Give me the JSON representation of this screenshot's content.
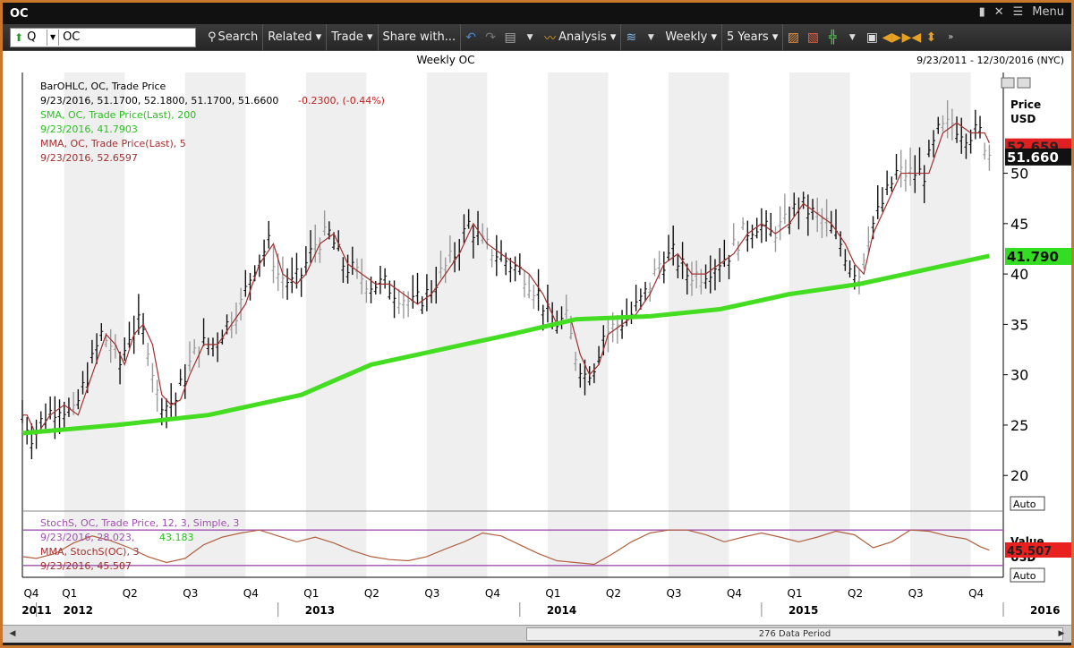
{
  "window": {
    "title": "OC",
    "menu_label": "Menu"
  },
  "toolbar": {
    "symbol_prefix": "Q",
    "symbol_value": "OC",
    "search": "Search",
    "related": "Related",
    "trade": "Trade",
    "share": "Share with...",
    "analysis": "Analysis",
    "interval": "Weekly",
    "range": "5 Years"
  },
  "chart_header": {
    "title": "Weekly OC",
    "date_range": "9/23/2011 - 12/30/2016 (NYC)"
  },
  "legend": {
    "l1": "BarOHLC, OC, Trade Price",
    "l2a": "9/23/2016, 51.1700, 52.1800, 51.1700, 51.6600",
    "l2b": "-0.2300, (-0.44%)",
    "l3": "SMA, OC, Trade Price(Last), 200",
    "l4": "9/23/2016, 41.7903",
    "l5": "MMA, OC, Trade Price(Last), 5",
    "l6": "9/23/2016, 52.6597"
  },
  "lower_legend": {
    "l1": "StochS, OC, Trade Price, 12, 3, Simple, 3",
    "l2a": "9/23/2016, 28.023,",
    "l2b": "43.183",
    "l3": "MMA, StochS(OC), 3",
    "l4": "9/23/2016, 45.507"
  },
  "price_axis": {
    "label1": "Price",
    "label2": "USD",
    "auto": "Auto"
  },
  "value_axis": {
    "label1": "Value",
    "label2": "USD",
    "auto": "Auto"
  },
  "badges": {
    "mma": "52.659",
    "last": "51.660",
    "sma": "41.790",
    "stoch": "45.507"
  },
  "scrollbar": {
    "label": "276 Data Period"
  },
  "colors": {
    "sma": "#44dd22",
    "mma": "#a03030",
    "bars": "#111111",
    "stoch": "#b06040",
    "band": "#a050b0"
  },
  "chart_data": {
    "type": "line",
    "title": "Weekly OC",
    "ylim": [
      17,
      60
    ],
    "yticks": [
      20,
      25,
      30,
      35,
      40,
      45,
      50
    ],
    "quarters": [
      {
        "label": "Q4"
      },
      {
        "label": "Q1"
      },
      {
        "label": "Q2"
      },
      {
        "label": "Q3"
      },
      {
        "label": "Q4"
      },
      {
        "label": "Q1"
      },
      {
        "label": "Q2"
      },
      {
        "label": "Q3"
      },
      {
        "label": "Q4"
      },
      {
        "label": "Q1"
      },
      {
        "label": "Q2"
      },
      {
        "label": "Q3"
      },
      {
        "label": "Q4"
      },
      {
        "label": "Q1"
      },
      {
        "label": "Q2"
      },
      {
        "label": "Q3"
      },
      {
        "label": "Q4"
      },
      {
        "label": "Q1"
      },
      {
        "label": "Q2"
      },
      {
        "label": "Q3"
      },
      {
        "label": "Q4"
      }
    ],
    "years": [
      "2011",
      "2012",
      "2013",
      "2014",
      "2015",
      "2016"
    ],
    "price_points": [
      [
        0,
        26
      ],
      [
        2,
        24
      ],
      [
        5,
        26
      ],
      [
        8,
        27
      ],
      [
        11,
        26
      ],
      [
        14,
        30
      ],
      [
        17,
        34
      ],
      [
        19,
        33
      ],
      [
        21,
        31
      ],
      [
        23,
        34
      ],
      [
        25,
        35
      ],
      [
        27,
        33
      ],
      [
        29,
        28
      ],
      [
        31,
        27
      ],
      [
        33,
        27.5
      ],
      [
        35,
        30
      ],
      [
        38,
        33
      ],
      [
        41,
        33
      ],
      [
        44,
        35
      ],
      [
        47,
        37
      ],
      [
        50,
        41
      ],
      [
        53,
        43
      ],
      [
        55,
        40
      ],
      [
        58,
        39
      ],
      [
        60,
        40
      ],
      [
        63,
        43
      ],
      [
        66,
        44
      ],
      [
        69,
        41
      ],
      [
        72,
        40
      ],
      [
        75,
        39
      ],
      [
        78,
        39
      ],
      [
        81,
        38
      ],
      [
        84,
        37
      ],
      [
        87,
        38
      ],
      [
        90,
        40
      ],
      [
        93,
        42
      ],
      [
        96,
        45
      ],
      [
        99,
        43
      ],
      [
        102,
        42
      ],
      [
        105,
        41
      ],
      [
        108,
        40
      ],
      [
        111,
        38
      ],
      [
        114,
        35
      ],
      [
        117,
        35.5
      ],
      [
        119,
        32
      ],
      [
        121,
        30
      ],
      [
        123,
        31
      ],
      [
        125,
        34
      ],
      [
        128,
        35
      ],
      [
        131,
        36
      ],
      [
        134,
        38
      ],
      [
        137,
        41
      ],
      [
        140,
        42
      ],
      [
        143,
        40
      ],
      [
        146,
        40
      ],
      [
        149,
        41
      ],
      [
        152,
        42
      ],
      [
        155,
        44
      ],
      [
        158,
        45
      ],
      [
        161,
        44
      ],
      [
        164,
        45
      ],
      [
        167,
        47
      ],
      [
        170,
        46
      ],
      [
        173,
        45
      ],
      [
        176,
        43
      ],
      [
        178,
        41
      ],
      [
        180,
        40
      ],
      [
        182,
        44
      ],
      [
        185,
        47
      ],
      [
        188,
        50
      ],
      [
        191,
        50
      ],
      [
        194,
        50
      ],
      [
        197,
        54
      ],
      [
        200,
        55
      ],
      [
        203,
        54
      ],
      [
        206,
        54
      ],
      [
        208,
        52
      ]
    ],
    "series": [
      {
        "name": "SMA, OC, Trade Price(Last), 200",
        "points": [
          [
            0,
            24.2
          ],
          [
            20,
            25
          ],
          [
            40,
            26
          ],
          [
            60,
            28
          ],
          [
            75,
            31
          ],
          [
            90,
            32.5
          ],
          [
            105,
            34
          ],
          [
            119,
            35.5
          ],
          [
            135,
            35.8
          ],
          [
            150,
            36.5
          ],
          [
            165,
            38
          ],
          [
            180,
            39
          ],
          [
            195,
            40.5
          ],
          [
            208,
            41.79
          ]
        ]
      }
    ],
    "stoch_points": [
      [
        0,
        35
      ],
      [
        3,
        32
      ],
      [
        7,
        40
      ],
      [
        11,
        58
      ],
      [
        15,
        70
      ],
      [
        19,
        62
      ],
      [
        23,
        50
      ],
      [
        27,
        35
      ],
      [
        31,
        25
      ],
      [
        35,
        32
      ],
      [
        39,
        55
      ],
      [
        43,
        68
      ],
      [
        47,
        75
      ],
      [
        51,
        80
      ],
      [
        55,
        70
      ],
      [
        59,
        60
      ],
      [
        63,
        68
      ],
      [
        67,
        58
      ],
      [
        71,
        45
      ],
      [
        75,
        35
      ],
      [
        79,
        30
      ],
      [
        83,
        28
      ],
      [
        87,
        35
      ],
      [
        91,
        48
      ],
      [
        95,
        60
      ],
      [
        99,
        75
      ],
      [
        103,
        70
      ],
      [
        107,
        55
      ],
      [
        111,
        40
      ],
      [
        115,
        28
      ],
      [
        119,
        25
      ],
      [
        123,
        22
      ],
      [
        127,
        40
      ],
      [
        131,
        60
      ],
      [
        135,
        75
      ],
      [
        139,
        80
      ],
      [
        143,
        80
      ],
      [
        147,
        72
      ],
      [
        151,
        60
      ],
      [
        155,
        68
      ],
      [
        159,
        75
      ],
      [
        163,
        68
      ],
      [
        167,
        60
      ],
      [
        171,
        68
      ],
      [
        175,
        78
      ],
      [
        179,
        72
      ],
      [
        183,
        50
      ],
      [
        187,
        60
      ],
      [
        191,
        80
      ],
      [
        195,
        78
      ],
      [
        199,
        70
      ],
      [
        203,
        65
      ],
      [
        206,
        52
      ],
      [
        208,
        46
      ]
    ],
    "stoch_band": [
      20,
      80
    ]
  }
}
